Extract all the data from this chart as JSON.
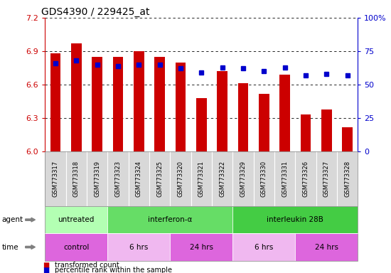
{
  "title": "GDS4390 / 229425_at",
  "samples": [
    "GSM773317",
    "GSM773318",
    "GSM773319",
    "GSM773323",
    "GSM773324",
    "GSM773325",
    "GSM773320",
    "GSM773321",
    "GSM773322",
    "GSM773329",
    "GSM773330",
    "GSM773331",
    "GSM773326",
    "GSM773327",
    "GSM773328"
  ],
  "bar_values": [
    6.88,
    6.97,
    6.85,
    6.85,
    6.9,
    6.85,
    6.8,
    6.48,
    6.72,
    6.61,
    6.52,
    6.69,
    6.33,
    6.38,
    6.22
  ],
  "percentile_values": [
    66,
    68,
    65,
    64,
    65,
    65,
    62,
    59,
    63,
    62,
    60,
    63,
    57,
    58,
    57
  ],
  "ylim": [
    6.0,
    7.2
  ],
  "yticks": [
    6.0,
    6.3,
    6.6,
    6.9,
    7.2
  ],
  "y2ticks": [
    0,
    25,
    50,
    75,
    100
  ],
  "y2ticklabels": [
    "0",
    "25",
    "50",
    "75",
    "100%"
  ],
  "bar_color": "#cc0000",
  "dot_color": "#0000cc",
  "bar_width": 0.5,
  "agent_groups": [
    {
      "label": "untreated",
      "start": 0,
      "end": 3,
      "color": "#b3ffb3"
    },
    {
      "label": "interferon-α",
      "start": 3,
      "end": 9,
      "color": "#66dd66"
    },
    {
      "label": "interleukin 28B",
      "start": 9,
      "end": 15,
      "color": "#44cc44"
    }
  ],
  "time_groups": [
    {
      "label": "control",
      "start": 0,
      "end": 3,
      "color": "#dd66dd"
    },
    {
      "label": "6 hrs",
      "start": 3,
      "end": 6,
      "color": "#f0b8f0"
    },
    {
      "label": "24 hrs",
      "start": 6,
      "end": 9,
      "color": "#dd66dd"
    },
    {
      "label": "6 hrs",
      "start": 9,
      "end": 12,
      "color": "#f0b8f0"
    },
    {
      "label": "24 hrs",
      "start": 12,
      "end": 15,
      "color": "#dd66dd"
    }
  ],
  "grid_color": "#000000",
  "axis_color_left": "#cc0000",
  "axis_color_right": "#0000cc",
  "bg_color": "#ffffff",
  "sample_bg_color": "#d8d8d8",
  "legend_red_label": "transformed count",
  "legend_blue_label": "percentile rank within the sample"
}
